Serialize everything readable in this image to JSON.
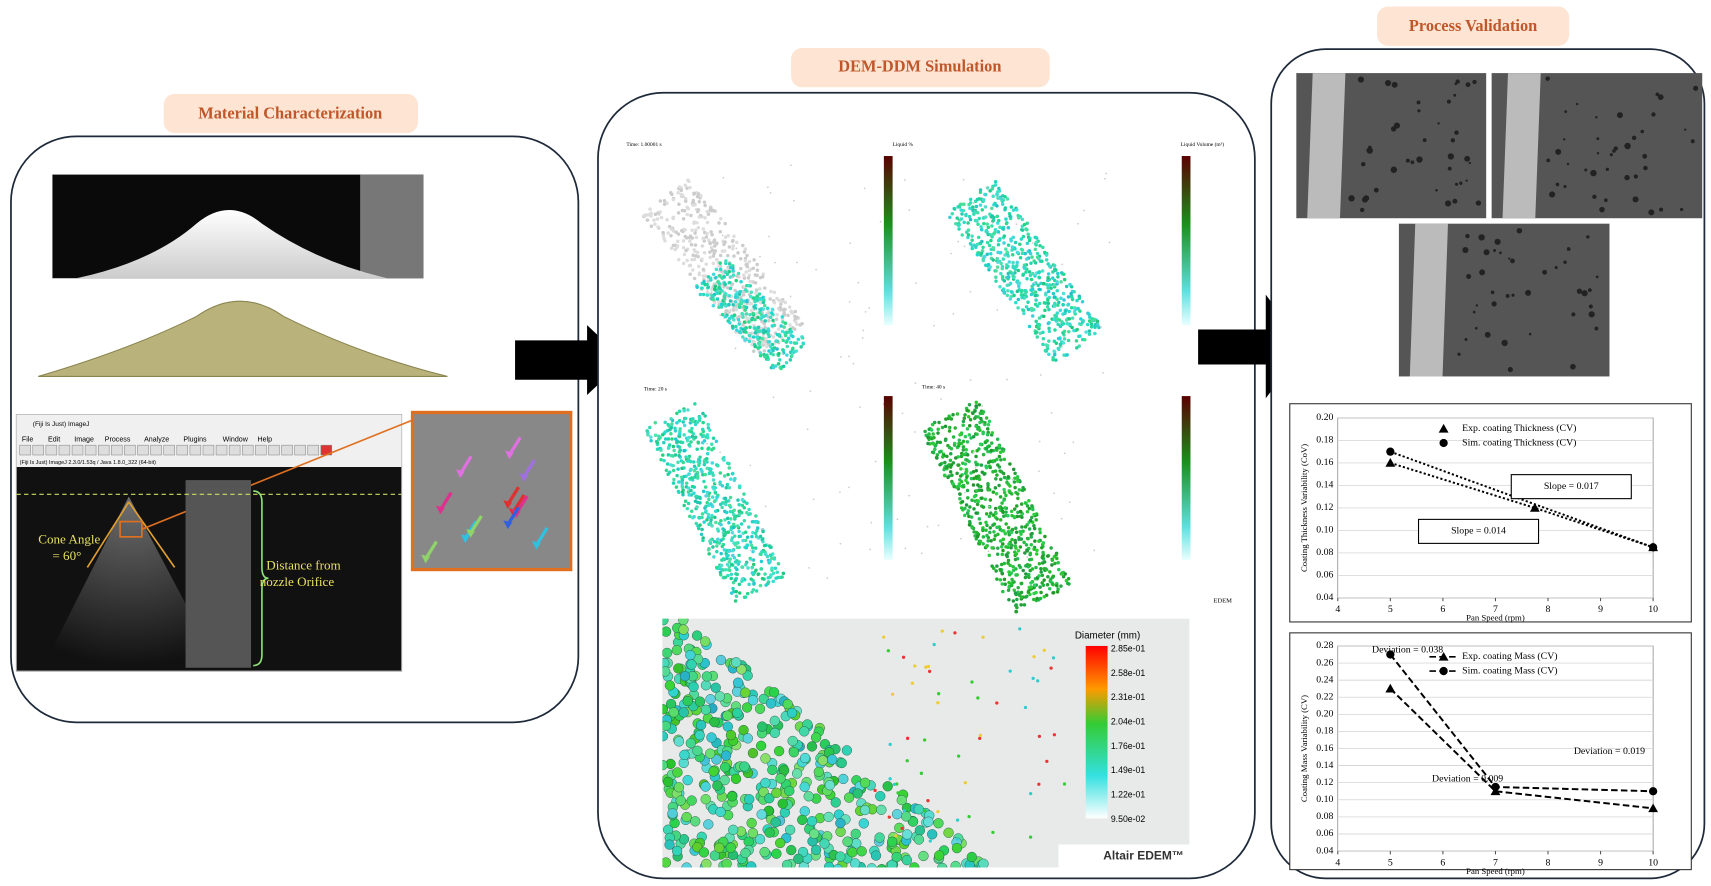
{
  "panels": [
    {
      "title": "Material Characterization"
    },
    {
      "title": "DEM-DDM Simulation"
    },
    {
      "title": "Process Validation"
    }
  ],
  "imagej": {
    "window_title": "(Fiji Is Just) ImageJ",
    "menu": [
      "File",
      "Edit",
      "Image",
      "Process",
      "Analyze",
      "Plugins",
      "Window",
      "Help"
    ],
    "status": "(Fiji Is Just) ImageJ 2.3.0/1.53q / Java 1.8.0_322 (64-bit)",
    "cone_angle": [
      "Cone Angle",
      "= 60°"
    ],
    "distance": [
      "Distance from",
      "nozzle Orifice"
    ]
  },
  "simulation": {
    "times": [
      "Time: 1.00001 s",
      "Time: 20 s",
      "Time: 40 s"
    ],
    "colorbar_titles": [
      "Liquid %",
      "Liquid Volume (m³)"
    ],
    "edem": "EDEM",
    "diameter_title": "Diameter (mm)",
    "diameter_ticks": [
      "2.85e-01",
      "2.58e-01",
      "2.31e-01",
      "2.04e-01",
      "1.76e-01",
      "1.49e-01",
      "1.22e-01",
      "9.50e-02"
    ],
    "brand": "Altair EDEM™"
  },
  "chart_data": [
    {
      "type": "line",
      "xlabel": "Pan Speed (rpm)",
      "ylabel": "Coating Thickness Variability (CoV)",
      "xlim": [
        4,
        10
      ],
      "xticks": [
        4,
        5,
        6,
        7,
        8,
        9,
        10
      ],
      "ylim": [
        0.04,
        0.2
      ],
      "yticks": [
        0.04,
        0.06,
        0.08,
        {
          "value": 0.1,
          "label": "0.10"
        },
        0.12,
        0.14,
        0.16,
        0.18,
        {
          "value": 0.2,
          "label": "0.20"
        }
      ],
      "line_style": "dotted",
      "legend": "upper right",
      "series": [
        {
          "name": "Exp. coating Thickness (CV)",
          "marker": "triangle",
          "color": "#000000",
          "x": [
            5,
            7.75,
            10
          ],
          "values": [
            0.16,
            0.12,
            0.085
          ]
        },
        {
          "name": "Sim. coating Thickness (CV)",
          "marker": "circle",
          "color": "#000000",
          "x": [
            5,
            10
          ],
          "values": [
            0.17,
            0.085
          ]
        }
      ],
      "annotations": [
        "Slope = 0.017",
        "Slope = 0.014"
      ]
    },
    {
      "type": "line",
      "xlabel": "Pan Speed (rpm)",
      "ylabel": "Coating Mass Variability (CV)",
      "xlim": [
        4,
        10
      ],
      "xticks": [
        4,
        5,
        6,
        7,
        8,
        9,
        10
      ],
      "ylim": [
        0.04,
        0.28
      ],
      "yticks": [
        0.04,
        0.06,
        0.08,
        {
          "value": 0.1,
          "label": "0.10"
        },
        0.12,
        0.14,
        0.16,
        0.18,
        {
          "value": 0.2,
          "label": "0.20"
        },
        0.22,
        0.24,
        0.26,
        0.28
      ],
      "line_style": "dashed",
      "legend": "upper right",
      "series": [
        {
          "name": "Exp. coating Mass (CV)",
          "marker": "triangle",
          "color": "#000000",
          "x": [
            5,
            7,
            10
          ],
          "values": [
            0.23,
            0.11,
            0.09
          ]
        },
        {
          "name": "Sim. coating Mass (CV)",
          "marker": "circle",
          "color": "#000000",
          "x": [
            5,
            7,
            10
          ],
          "values": [
            0.27,
            0.115,
            0.11
          ]
        }
      ],
      "annotations": [
        "Deviation = 0.038",
        "Deviation = 0.019",
        "Deviation = 0.009"
      ]
    }
  ]
}
